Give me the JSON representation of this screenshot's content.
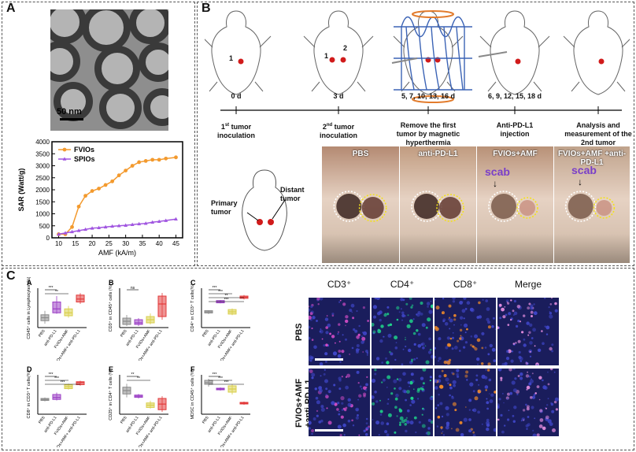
{
  "panels": {
    "a": "A",
    "b": "B",
    "c": "C"
  },
  "panel_a": {
    "scale_bar": "50 nm",
    "chart_data": {
      "type": "line",
      "title": "",
      "xlabel": "AMF (kA/m)",
      "ylabel": "SAR (Watt/g)",
      "xlim": [
        8,
        47
      ],
      "ylim": [
        0,
        4000
      ],
      "xticks": [
        "10",
        "15",
        "20",
        "25",
        "30",
        "35",
        "40",
        "45"
      ],
      "yticks": [
        "0",
        "500",
        "1000",
        "1500",
        "2000",
        "2500",
        "3000",
        "3500",
        "4000"
      ],
      "legend": [
        "FVIOs",
        "SPIOs"
      ],
      "series": [
        {
          "name": "FVIOs",
          "color": "#f39a2e",
          "x": [
            10,
            12,
            14,
            16,
            18,
            20,
            22,
            24,
            26,
            28,
            30,
            32,
            34,
            36,
            38,
            40,
            42,
            45
          ],
          "y": [
            150,
            150,
            450,
            1300,
            1750,
            1950,
            2050,
            2200,
            2350,
            2600,
            2800,
            3000,
            3150,
            3200,
            3250,
            3250,
            3300,
            3350
          ]
        },
        {
          "name": "SPIOs",
          "color": "#a055e0",
          "x": [
            10,
            12,
            14,
            16,
            18,
            20,
            22,
            24,
            26,
            28,
            30,
            32,
            34,
            36,
            38,
            40,
            42,
            45
          ],
          "y": [
            150,
            200,
            250,
            300,
            350,
            400,
            420,
            450,
            480,
            500,
            520,
            550,
            580,
            600,
            650,
            680,
            720,
            780
          ]
        }
      ]
    }
  },
  "panel_b": {
    "timeline": [
      {
        "day": "0 d",
        "label_a": "1",
        "label_sup": "st",
        "label_b": " tumor",
        "label_c": "inoculation"
      },
      {
        "day": "3 d",
        "label_a": "2",
        "label_sup": "nd",
        "label_b": " tumor",
        "label_c": "inoculation"
      },
      {
        "day": "5, 7, 10, 13, 16 d",
        "label_a": "Remove the first",
        "label_sup": "",
        "label_b": "",
        "label_c": "tumor by magnetic hyperthermia"
      },
      {
        "day": "6, 9, 12, 15, 18 d",
        "label_a": "Anti-PD-L1",
        "label_sup": "",
        "label_b": "",
        "label_c": "injection"
      },
      {
        "day": "",
        "label_a": "Analysis and",
        "label_sup": "",
        "label_b": "",
        "label_c": "measurement of the 2nd tumor"
      }
    ],
    "mouse_marks": {
      "one": "1",
      "two": "2"
    },
    "diagram": {
      "primary": "Primary tumor",
      "distant": "Distant tumor"
    },
    "photos": [
      {
        "title": "PBS",
        "scab": ""
      },
      {
        "title": "anti-PD-L1",
        "scab": ""
      },
      {
        "title": "FVIOs+AMF",
        "scab": "scab"
      },
      {
        "title": "FVIOs+AMF +anti-PD-L1",
        "scab": "scab"
      }
    ]
  },
  "panel_c": {
    "plots": [
      {
        "id": "A",
        "ylabel": "CD45⁺ cells in Lymphocytes (%)",
        "sig": [
          "***",
          "**"
        ]
      },
      {
        "id": "B",
        "ylabel": "CD3⁺ in CD45⁺ cells (%)",
        "sig": [
          "ns"
        ]
      },
      {
        "id": "C",
        "ylabel": "CD4⁺ in CD3⁺ T cells(%)",
        "sig": [
          "***",
          "***",
          "**",
          "***"
        ]
      },
      {
        "id": "D",
        "ylabel": "CD8⁺ in CD3⁺ T cells(%)",
        "sig": [
          "***",
          "***",
          "***"
        ]
      },
      {
        "id": "E",
        "ylabel": "CD25⁺ in CD4⁺ T cells (%)",
        "sig": [
          "**",
          "**"
        ]
      },
      {
        "id": "F",
        "ylabel": "MDSC in CD45⁺ cells (%)",
        "sig": [
          "***",
          "***",
          "***"
        ]
      }
    ],
    "groups": [
      "PBS",
      "anti-PD-L1",
      "FVIOs+AMF",
      "FVIOs+AMF+ anti-PD-L1"
    ],
    "box_colors": [
      "#8a8a8a",
      "#9b3fc5",
      "#d9cf4a",
      "#e23a3a"
    ],
    "micro_columns": [
      "CD3⁺",
      "CD4⁺",
      "CD8⁺",
      "Merge"
    ],
    "micro_rows": [
      "PBS",
      "FVIOs+AMF +anti-PD-L1"
    ]
  }
}
